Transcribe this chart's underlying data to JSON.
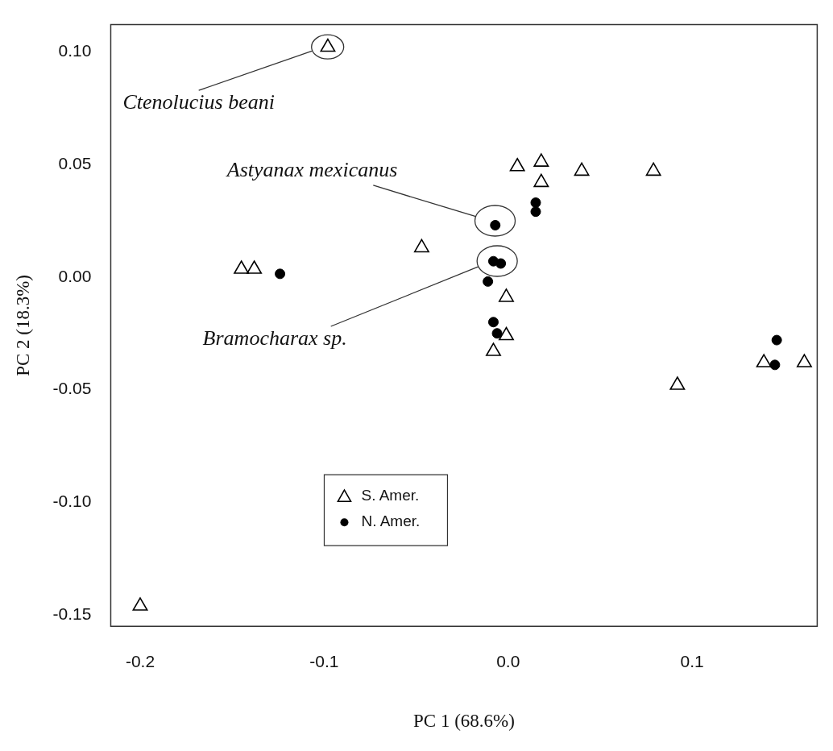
{
  "chart_data": {
    "type": "scatter",
    "xlabel": "PC 1 (68.6%)",
    "ylabel": "PC 2 (18.3%)",
    "xlim": [
      -0.216,
      0.168
    ],
    "ylim": [
      -0.155,
      0.112
    ],
    "xticks": [
      {
        "value": -0.2,
        "label": "-0.2"
      },
      {
        "value": -0.1,
        "label": "-0.1"
      },
      {
        "value": 0,
        "label": "0.0"
      },
      {
        "value": 0.1,
        "label": "0.1"
      }
    ],
    "yticks": [
      {
        "value": -0.15,
        "label": "-0.15"
      },
      {
        "value": -0.1,
        "label": "-0.10"
      },
      {
        "value": -0.05,
        "label": "-0.05"
      },
      {
        "value": 0,
        "label": "0.00"
      },
      {
        "value": 0.05,
        "label": "0.05"
      },
      {
        "value": 0.1,
        "label": "0.10"
      }
    ],
    "grid": false,
    "legend": "bottom left",
    "series": [
      {
        "name": "S. Amer.",
        "color": "#000000",
        "marker": "triangle",
        "x": [
          -0.098,
          -0.2,
          -0.145,
          -0.138,
          -0.047,
          0.005,
          0.018,
          0.018,
          0.04,
          0.079,
          -0.001,
          -0.001,
          -0.008,
          0.092,
          0.139,
          0.161
        ],
        "values": [
          0.102,
          -0.146,
          0.0035,
          0.0035,
          0.013,
          0.049,
          0.051,
          0.042,
          0.047,
          0.047,
          -0.009,
          -0.026,
          -0.033,
          -0.048,
          -0.038,
          -0.038
        ]
      },
      {
        "name": "N. Amer.",
        "color": "#000000",
        "marker": "circle",
        "x": [
          -0.124,
          0.015,
          0.015,
          -0.007,
          -0.008,
          -0.004,
          -0.011,
          -0.008,
          -0.006,
          0.146,
          0.145
        ],
        "values": [
          0.0014,
          0.033,
          0.029,
          0.023,
          0.007,
          0.006,
          -0.002,
          -0.02,
          -0.025,
          -0.028,
          -0.039
        ]
      }
    ],
    "annotations": [
      "Ctenolucius beani",
      "Astyanax mexicanus",
      "Bramocharax sp."
    ]
  }
}
